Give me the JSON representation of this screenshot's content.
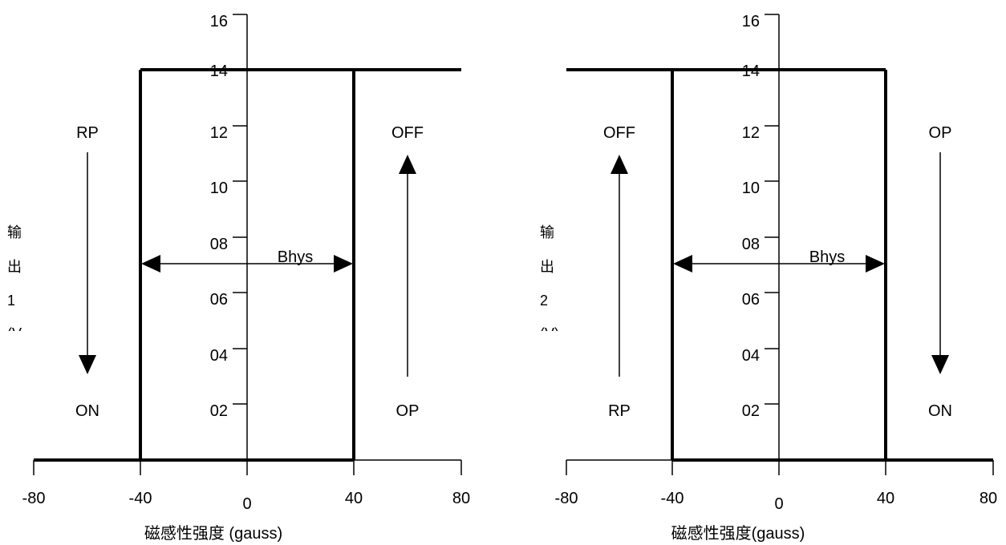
{
  "panels": [
    {
      "y_ticks": [
        "16",
        "14",
        "12",
        "10",
        "08",
        "06",
        "04",
        "02"
      ],
      "x_ticks": [
        "-80",
        "-40",
        "0",
        "40",
        "80"
      ],
      "x_label": "磁感性强度 (gauss)",
      "y_label": [
        "输",
        "出",
        "1",
        "(V"
      ],
      "left_top_label": "RP",
      "left_bottom_label": "ON",
      "right_top_label": "OFF",
      "right_bottom_label": "OP",
      "hys_label": "Bhys"
    },
    {
      "y_ticks": [
        "16",
        "14",
        "12",
        "10",
        "08",
        "06",
        "04",
        "02"
      ],
      "x_ticks": [
        "-80",
        "-40",
        "0",
        "40",
        "80"
      ],
      "x_label": "磁感性强度(gauss)",
      "y_label": [
        "输",
        "出",
        "2",
        "(V)"
      ],
      "left_top_label": "OFF",
      "left_bottom_label": "RP",
      "right_top_label": "OP",
      "right_bottom_label": "ON",
      "hys_label": "Bhys"
    }
  ]
}
